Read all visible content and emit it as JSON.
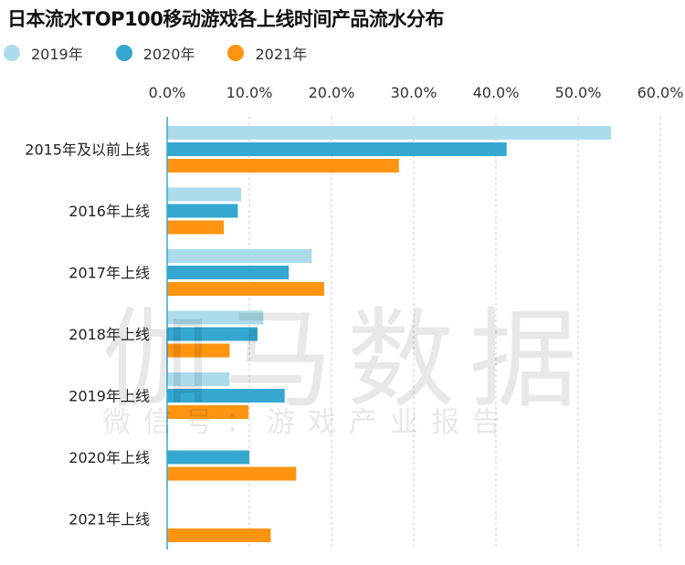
{
  "chart_data": {
    "type": "bar",
    "orientation": "horizontal",
    "title": "日本流水TOP100移动游戏各上线时间产品流水分布",
    "categories": [
      "2015年及以前上线",
      "2016年上线",
      "2017年上线",
      "2018年上线",
      "2019年上线",
      "2020年上线",
      "2021年上线"
    ],
    "series": [
      {
        "name": "2019年",
        "color": "#acdcec",
        "values": [
          54.0,
          9.0,
          17.6,
          11.7,
          7.6,
          null,
          null
        ]
      },
      {
        "name": "2020年",
        "color": "#34a8d0",
        "values": [
          41.3,
          8.6,
          14.8,
          11.0,
          14.3,
          10.0,
          null
        ]
      },
      {
        "name": "2021年",
        "color": "#ff9410",
        "values": [
          28.2,
          6.9,
          19.1,
          7.6,
          9.9,
          15.7,
          12.6
        ]
      }
    ],
    "xticks": [
      "0.0%",
      "10.0%",
      "20.0%",
      "30.0%",
      "40.0%",
      "50.0%",
      "60.0%"
    ],
    "xlim": [
      0,
      60
    ],
    "xaxis_position": "top",
    "grid": true,
    "legend_position": "top-left"
  },
  "watermark": {
    "main": "伽马数据",
    "sub": "微信号：游戏产业报告"
  }
}
